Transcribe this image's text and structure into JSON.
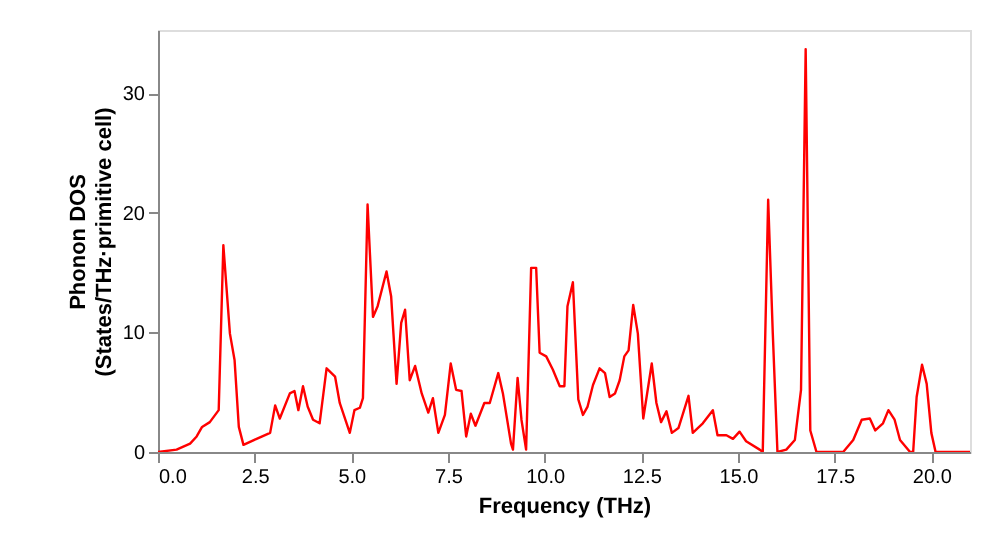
{
  "chart_data": {
    "type": "line",
    "xlabel": "Frequency (THz)",
    "ylabel": "Phonon DOS\n(States/THz·primitive cell)",
    "x": [
      0,
      0.48,
      0.83,
      1.0,
      1.14,
      1.34,
      1.57,
      1.69,
      1.86,
      1.98,
      2.09,
      2.21,
      2.55,
      2.9,
      3.03,
      3.15,
      3.41,
      3.53,
      3.63,
      3.75,
      3.87,
      4.01,
      4.18,
      4.36,
      4.58,
      4.7,
      4.96,
      5.08,
      5.22,
      5.3,
      5.42,
      5.56,
      5.68,
      5.91,
      6.03,
      6.17,
      6.29,
      6.39,
      6.51,
      6.65,
      6.82,
      6.99,
      7.11,
      7.25,
      7.42,
      7.57,
      7.71,
      7.85,
      7.97,
      8.09,
      8.21,
      8.44,
      8.58,
      8.8,
      8.92,
      9.13,
      9.18,
      9.3,
      9.4,
      9.52,
      9.65,
      9.78,
      9.87,
      10.04,
      10.21,
      10.39,
      10.51,
      10.59,
      10.73,
      10.87,
      10.99,
      11.11,
      11.25,
      11.42,
      11.56,
      11.68,
      11.82,
      11.94,
      12.06,
      12.17,
      12.29,
      12.41,
      12.55,
      12.77,
      12.89,
      13.01,
      13.15,
      13.29,
      13.46,
      13.72,
      13.83,
      14.09,
      14.35,
      14.47,
      14.7,
      14.87,
      15.04,
      15.21,
      15.56,
      15.64,
      15.78,
      15.9,
      16.02,
      16.25,
      16.47,
      16.63,
      16.75,
      16.87,
      17.03,
      17.72,
      17.98,
      18.2,
      18.41,
      18.55,
      18.75,
      18.89,
      19.05,
      19.19,
      19.45,
      19.53,
      19.62,
      19.76,
      19.88,
      20.0,
      20.11,
      21.0
    ],
    "series": [
      {
        "color": "#ff0000",
        "values": [
          0,
          0.2,
          0.7,
          1.3,
          2.1,
          2.5,
          3.5,
          17.3,
          9.9,
          7.7,
          2.1,
          0.6,
          1.1,
          1.6,
          3.9,
          2.8,
          4.9,
          5.1,
          3.5,
          5.5,
          3.8,
          2.7,
          2.4,
          7.0,
          6.3,
          4.1,
          1.6,
          3.5,
          3.7,
          4.5,
          20.7,
          11.3,
          12.2,
          15.1,
          13.0,
          5.7,
          10.8,
          11.9,
          6.0,
          7.2,
          4.9,
          3.3,
          4.5,
          1.6,
          3.1,
          7.4,
          5.2,
          5.1,
          1.3,
          3.2,
          2.2,
          4.1,
          4.1,
          6.6,
          4.9,
          0.7,
          0.2,
          6.2,
          2.7,
          0.2,
          15.4,
          15.4,
          8.3,
          8.0,
          6.9,
          5.5,
          5.5,
          12.2,
          14.2,
          4.4,
          3.1,
          3.8,
          5.6,
          7.0,
          6.6,
          4.6,
          4.9,
          6.0,
          8.0,
          8.5,
          12.3,
          9.9,
          2.8,
          7.4,
          4.1,
          2.5,
          3.4,
          1.6,
          2.0,
          4.7,
          1.6,
          2.4,
          3.5,
          1.4,
          1.4,
          1.1,
          1.7,
          0.9,
          0.2,
          0,
          21.1,
          9.9,
          0,
          0.2,
          1.0,
          5.2,
          33.7,
          1.8,
          0,
          0,
          1.0,
          2.7,
          2.8,
          1.8,
          2.4,
          3.5,
          2.7,
          1.0,
          0,
          0,
          4.6,
          7.3,
          5.7,
          1.6,
          0,
          0
        ]
      }
    ],
    "xlim": [
      0,
      21.0
    ],
    "ylim": [
      0,
      35.3
    ],
    "xticks": [
      {
        "value": 0,
        "label": "0.0"
      },
      2.5,
      {
        "value": 5,
        "label": "5.0"
      },
      7.5,
      {
        "value": 10,
        "label": "10.0"
      },
      12.5,
      {
        "value": 15,
        "label": "15.0"
      },
      17.5,
      {
        "value": 20,
        "label": "20.0"
      }
    ],
    "yticks": [
      0,
      10,
      20,
      30
    ],
    "grid": false
  }
}
